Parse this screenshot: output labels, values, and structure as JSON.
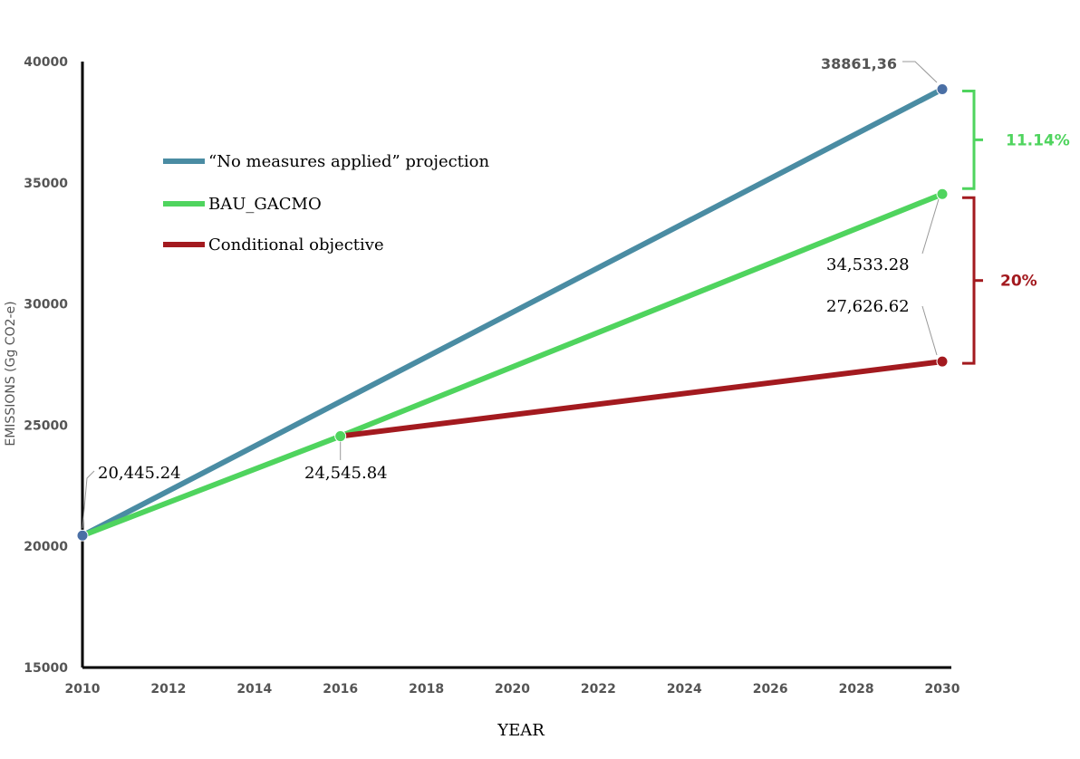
{
  "chart_data": {
    "type": "line",
    "xlabel": "YEAR",
    "ylabel": "EMISSIONS (Gg CO2-e)",
    "xlim": [
      2010,
      2030
    ],
    "ylim": [
      15000,
      40000
    ],
    "x_ticks": [
      "2010",
      "2012",
      "2014",
      "2016",
      "2018",
      "2020",
      "2022",
      "2024",
      "2026",
      "2028",
      "2030"
    ],
    "y_ticks": [
      "15000",
      "20000",
      "25000",
      "30000",
      "35000",
      "40000"
    ],
    "grid": false,
    "legend_position": "top-left",
    "series": [
      {
        "name": "“No measures applied” projection",
        "color": "#4a8ca3",
        "points": [
          {
            "x": 2010,
            "y": 20445.24
          },
          {
            "x": 2030,
            "y": 38861.36
          }
        ]
      },
      {
        "name": "BAU_GACMO",
        "color": "#4fd45e",
        "points": [
          {
            "x": 2010,
            "y": 20445.24
          },
          {
            "x": 2016,
            "y": 24545.84
          },
          {
            "x": 2030,
            "y": 34533.28
          }
        ]
      },
      {
        "name": "Conditional objective",
        "color": "#a31a1f",
        "points": [
          {
            "x": 2016,
            "y": 24545.84
          },
          {
            "x": 2030,
            "y": 27626.62
          }
        ]
      }
    ],
    "data_labels": [
      {
        "text": "20,445.24",
        "x": 2010,
        "y": 20445.24
      },
      {
        "text": "24,545.84",
        "x": 2016,
        "y": 24545.84
      },
      {
        "text": "38861,36",
        "x": 2030,
        "y": 38861.36
      },
      {
        "text": "34,533.28",
        "x": 2030,
        "y": 34533.28
      },
      {
        "text": "27,626.62",
        "x": 2030,
        "y": 27626.62
      }
    ],
    "annotations": [
      {
        "text": "11.14%",
        "color": "#27b04a",
        "from": 34533.28,
        "to": 38861.36
      },
      {
        "text": "20%",
        "color": "#a31a1f",
        "from": 27626.62,
        "to": 34533.28
      }
    ]
  }
}
